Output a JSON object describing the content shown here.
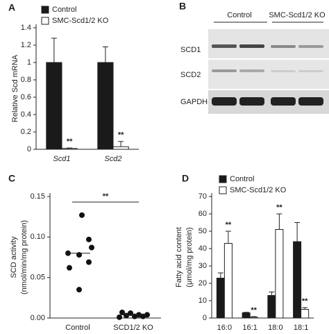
{
  "chart_data": [
    {
      "type": "bar",
      "panel": "A",
      "y_label": "Relative Scd mRNA",
      "categories": [
        "Scd1",
        "Scd2"
      ],
      "series": [
        {
          "name": "Control",
          "color": "#1a1a1a",
          "values": [
            1,
            1
          ],
          "errors": [
            0.28,
            0.18
          ]
        },
        {
          "name": "SMC-Scd1/2 KO",
          "color": "#ffffff",
          "values": [
            0.01,
            0.03
          ],
          "errors": [
            0.005,
            0.06
          ],
          "significance": [
            "**",
            "**"
          ]
        }
      ],
      "ylim": [
        0,
        1.4
      ],
      "yticks": [
        0,
        0.2,
        0.4,
        0.6,
        0.8,
        1,
        1.2,
        1.4
      ]
    },
    {
      "type": "strip",
      "panel": "C",
      "y_label": [
        "SCD activity",
        "(nmol/min/mg protein)"
      ],
      "categories": [
        "Control",
        "SCD1/2 KO"
      ],
      "values": [
        [
          0.127,
          0.097,
          0.087,
          0.08,
          0.078,
          0.069,
          0.062,
          0.035
        ],
        [
          0.007,
          0.006,
          0.004,
          0.004,
          0.003,
          0.002,
          0.002,
          0.001
        ]
      ],
      "means": [
        0.08,
        0.004
      ],
      "significance": "**",
      "color": "#111111",
      "ylim": [
        0,
        0.15
      ],
      "yticks": [
        {
          "value": 0,
          "label": "0.00"
        },
        {
          "value": 0.05,
          "label": "0.05"
        },
        {
          "value": 0.1,
          "label": "0.10"
        },
        {
          "value": 0.15,
          "label": "0.15"
        }
      ]
    },
    {
      "type": "bar",
      "panel": "D",
      "y_label": [
        "Fatty acid content",
        "(μmol/mg protein)"
      ],
      "categories": [
        "16:0",
        "16:1",
        "18:0",
        "18:1"
      ],
      "series": [
        {
          "name": "Control",
          "color": "#1a1a1a",
          "values": [
            23,
            3,
            13,
            44
          ],
          "errors": [
            3,
            0.3,
            2,
            11
          ]
        },
        {
          "name": "SMC-Scd1/2 KO",
          "color": "#ffffff",
          "values": [
            43,
            0.5,
            51,
            5
          ],
          "errors": [
            7,
            0.3,
            9,
            1
          ],
          "significance": [
            "**",
            "**",
            "**",
            "**"
          ]
        }
      ],
      "ylim": [
        0,
        70
      ],
      "yticks": [
        0,
        10,
        20,
        30,
        40,
        50,
        60,
        70
      ]
    }
  ],
  "blot": {
    "panel": "B",
    "groups": [
      "Control",
      "SMC-Scd1/2 KO"
    ],
    "rows": [
      "SCD1",
      "SCD2",
      "GAPDH"
    ]
  }
}
